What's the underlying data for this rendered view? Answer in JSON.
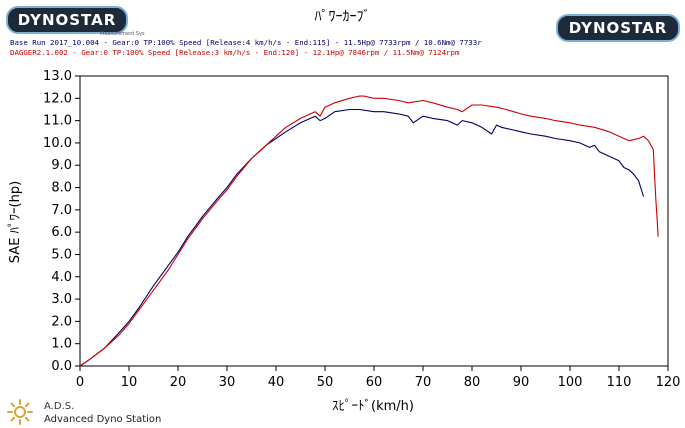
{
  "header": {
    "brand_left": "DYNOSTAR",
    "brand_right": "DYNOSTAR",
    "brand_sub": "Measurement Sys",
    "title": "ﾊﾟﾜｰｶｰﾌﾞ"
  },
  "legend": {
    "line1": "Base Run 2017_10.004 - Gear:0 TP:100% Speed [Release:4 km/h/s - End:115]   - 11.5Hp@ 7733rpm / 10.6Nm@ 7733r",
    "line2": "DAGGER2.1.002 - Gear:0 TP:100% Speed [Release:3 km/h/s - End:120]   - 12.1Hp@ 7846rpm / 11.5Nm@ 7124rpm"
  },
  "footer": {
    "title": "A.D.S.",
    "subtitle": "Advanced Dyno Station"
  },
  "colors": {
    "base": "#000066",
    "dagger": "#cc0000",
    "axis": "#000000",
    "grid": "#dddddd"
  },
  "chart_data": {
    "type": "line",
    "xlabel": "ｽﾋﾟｰﾄﾞ(km/h)",
    "ylabel": "SAE ﾊﾟﾜｰ(hp)",
    "xlim": [
      0,
      120
    ],
    "ylim": [
      0,
      13
    ],
    "xticks": [
      "0",
      "10",
      "20",
      "30",
      "40",
      "50",
      "60",
      "70",
      "80",
      "90",
      "100",
      "110",
      "120"
    ],
    "yticks": [
      "0.0",
      "1.0",
      "2.0",
      "3.0",
      "4.0",
      "5.0",
      "6.0",
      "7.0",
      "8.0",
      "9.0",
      "10.0",
      "11.0",
      "12.0",
      "13.0"
    ],
    "grid": false,
    "series": [
      {
        "name": "Base Run 2017_10.004",
        "color": "#000066",
        "x": [
          0,
          2,
          5,
          8,
          10,
          12,
          15,
          18,
          20,
          22,
          25,
          28,
          30,
          32,
          35,
          38,
          40,
          42,
          45,
          48,
          49,
          50,
          52,
          55,
          57,
          60,
          62,
          65,
          67,
          68,
          70,
          72,
          75,
          77,
          78,
          80,
          82,
          84,
          85,
          86,
          88,
          90,
          92,
          95,
          97,
          100,
          102,
          104,
          105,
          106,
          108,
          110,
          111,
          112,
          113,
          114,
          115
        ],
        "y": [
          0.0,
          0.3,
          0.8,
          1.5,
          2.0,
          2.6,
          3.6,
          4.5,
          5.1,
          5.8,
          6.7,
          7.5,
          8.0,
          8.6,
          9.3,
          9.9,
          10.2,
          10.5,
          10.9,
          11.2,
          11.0,
          11.1,
          11.4,
          11.5,
          11.5,
          11.4,
          11.4,
          11.3,
          11.2,
          10.9,
          11.2,
          11.1,
          11.0,
          10.8,
          11.0,
          10.9,
          10.7,
          10.4,
          10.8,
          10.7,
          10.6,
          10.5,
          10.4,
          10.3,
          10.2,
          10.1,
          10.0,
          9.8,
          9.9,
          9.6,
          9.4,
          9.2,
          8.9,
          8.8,
          8.6,
          8.3,
          7.6
        ]
      },
      {
        "name": "DAGGER2.1.002",
        "color": "#cc0000",
        "x": [
          0,
          2,
          5,
          8,
          10,
          12,
          15,
          18,
          20,
          22,
          25,
          28,
          30,
          32,
          35,
          38,
          40,
          42,
          45,
          47,
          48,
          49,
          50,
          52,
          55,
          57,
          58,
          60,
          62,
          65,
          67,
          70,
          72,
          75,
          77,
          78,
          80,
          82,
          85,
          87,
          90,
          92,
          95,
          97,
          100,
          102,
          105,
          108,
          110,
          112,
          114,
          115,
          116,
          117,
          117.5,
          118
        ],
        "y": [
          0.0,
          0.3,
          0.8,
          1.4,
          1.9,
          2.5,
          3.4,
          4.3,
          5.0,
          5.7,
          6.6,
          7.4,
          7.9,
          8.5,
          9.3,
          9.9,
          10.3,
          10.7,
          11.1,
          11.3,
          11.4,
          11.2,
          11.6,
          11.8,
          12.0,
          12.1,
          12.1,
          12.0,
          12.0,
          11.9,
          11.8,
          11.9,
          11.8,
          11.6,
          11.5,
          11.4,
          11.7,
          11.7,
          11.6,
          11.5,
          11.3,
          11.2,
          11.1,
          11.0,
          10.9,
          10.8,
          10.7,
          10.5,
          10.3,
          10.1,
          10.2,
          10.3,
          10.1,
          9.7,
          7.5,
          5.8
        ]
      }
    ]
  }
}
